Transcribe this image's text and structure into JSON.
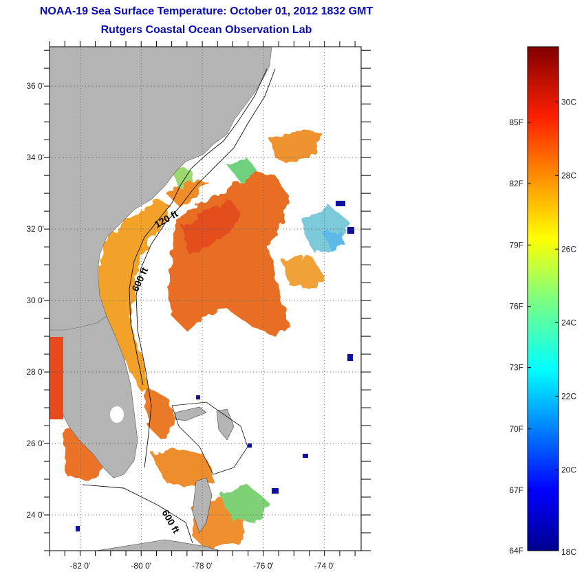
{
  "title_line1": "NOAA-19 Sea Surface Temperature:  October 01, 2012 1832 GMT",
  "title_line2": "Rutgers Coastal Ocean Observation Lab",
  "map": {
    "lat_labels": [
      "36 0'",
      "34 0'",
      "32 0'",
      "30 0'",
      "28 0'",
      "26 0'",
      "24 0'"
    ],
    "lat_values": [
      36,
      34,
      32,
      30,
      28,
      26,
      24
    ],
    "lon_labels": [
      "-82 0'",
      "-80 0'",
      "-78 0'",
      "-76 0'",
      "-74 0'"
    ],
    "lon_values": [
      -82,
      -80,
      -78,
      -76,
      -74
    ],
    "lat_range": [
      23,
      37.1
    ],
    "lon_range": [
      -83,
      -72.8
    ],
    "isobath_labels": [
      "120 ft",
      "600 ft",
      "600 ft"
    ],
    "colors": {
      "land": "#b4b4b4",
      "grid": "#555555"
    }
  },
  "colorbar": {
    "f_labels": [
      "85F",
      "82F",
      "79F",
      "76F",
      "73F",
      "70F",
      "67F",
      "64F"
    ],
    "c_labels": [
      "30C",
      "28C",
      "26C",
      "24C",
      "22C",
      "20C",
      "18C"
    ],
    "range_c": [
      17.8,
      31.5
    ]
  }
}
